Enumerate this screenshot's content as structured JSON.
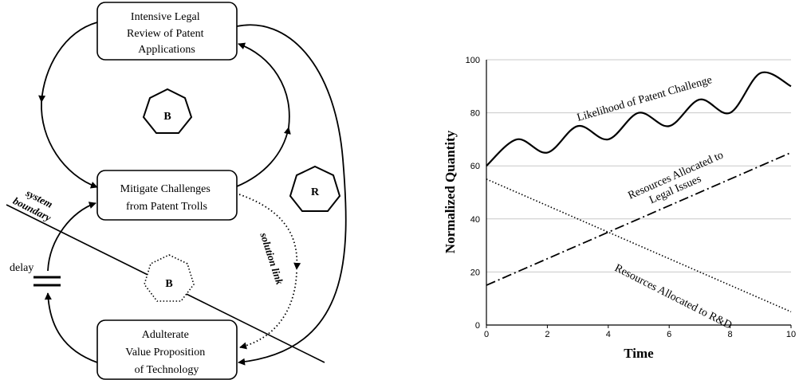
{
  "causal_loop_diagram": {
    "nodes": {
      "legal_review": [
        "Intensive Legal",
        "Review of Patent",
        "Applications"
      ],
      "mitigate": [
        "Mitigate Challenges",
        "from Patent Trolls"
      ],
      "adulterate": [
        "Adulterate",
        "Value Proposition",
        "of Technology"
      ]
    },
    "loop_markers": {
      "balancing_top": "B",
      "reinforcing": "R",
      "balancing_bottom": "B"
    },
    "labels": {
      "system_boundary": [
        "system",
        "boundary"
      ],
      "delay": "delay",
      "solution_link": "solution link"
    }
  },
  "chart_data": {
    "type": "line",
    "xlabel": "Time",
    "ylabel": "Normalized Quantity",
    "xlim": [
      0,
      10
    ],
    "ylim": [
      0,
      100
    ],
    "x_ticks": [
      "0",
      "2",
      "4",
      "6",
      "8",
      "10"
    ],
    "y_ticks": [
      "0",
      "20",
      "40",
      "60",
      "80",
      "100"
    ],
    "grid": "horizontal",
    "series": [
      {
        "name": "Likelihood of Patent Challenge",
        "style": "solid",
        "x": [
          0,
          1,
          2,
          3,
          4,
          5,
          6,
          7,
          8,
          9,
          10
        ],
        "y": [
          60,
          70,
          65,
          75,
          70,
          80,
          75,
          85,
          80,
          95,
          90
        ]
      },
      {
        "name": "Resources Allocated to Legal Issues",
        "label_lines": [
          "Resources Allocated to",
          "Legal Issues"
        ],
        "style": "dash-dot",
        "x": [
          0,
          10
        ],
        "y": [
          15,
          65
        ]
      },
      {
        "name": "Resources Allocated to R&D",
        "style": "dotted",
        "x": [
          0,
          10
        ],
        "y": [
          55,
          5
        ]
      }
    ]
  }
}
